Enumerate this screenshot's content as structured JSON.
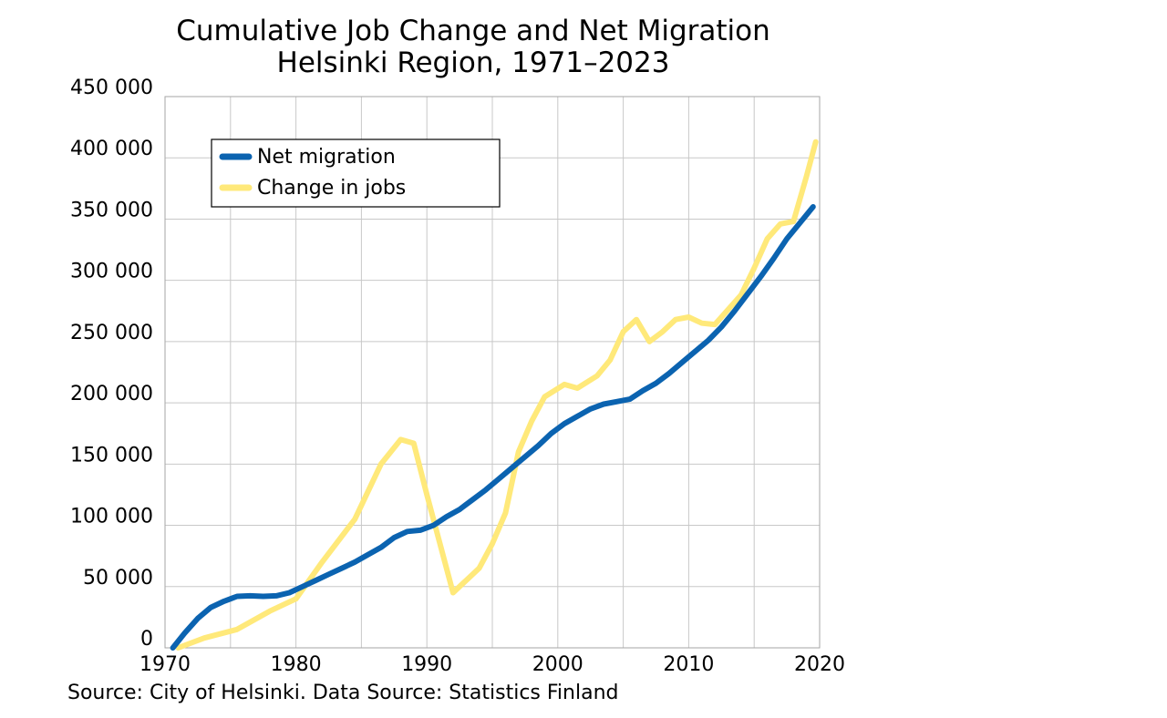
{
  "chart_data": {
    "type": "line",
    "title": [
      "Cumulative Job Change and Net Migration",
      "Helsinki Region, 1971–2023"
    ],
    "xlabel": "",
    "ylabel": "",
    "xlim": [
      1970,
      2020
    ],
    "ylim": [
      0,
      450000
    ],
    "x_ticks": [
      1970,
      1980,
      1990,
      2000,
      2010,
      2020
    ],
    "x_tick_labels": [
      "1970",
      "1980",
      "1990",
      "2000",
      "2010",
      "2020"
    ],
    "y_ticks": [
      0,
      50000,
      100000,
      150000,
      200000,
      250000,
      300000,
      350000,
      400000,
      450000
    ],
    "y_tick_labels": [
      "0",
      "50 000",
      "100 000",
      "150 000",
      "200 000",
      "250 000",
      "300 000",
      "350 000",
      "400 000",
      "450 000"
    ],
    "grid": true,
    "legend_position": "top-left",
    "series": [
      {
        "name": "Net migration",
        "color": "#0b63b0",
        "x": [
          1970.6,
          1971.5,
          1972.5,
          1973.5,
          1974.5,
          1975.5,
          1976.5,
          1977.5,
          1978.5,
          1979.5,
          1980.5,
          1981.5,
          1982.5,
          1983.5,
          1984.5,
          1985.5,
          1986.5,
          1987.5,
          1988.5,
          1989.5,
          1990.5,
          1991.5,
          1992.5,
          1993.5,
          1994.5,
          1995.5,
          1996.5,
          1997.5,
          1998.5,
          1999.5,
          2000.5,
          2001.5,
          2002.5,
          2003.5,
          2004.5,
          2005.5,
          2006.5,
          2007.5,
          2008.5,
          2009.5,
          2010.5,
          2011.5,
          2012.5,
          2013.5,
          2014.5,
          2015.5,
          2016.5,
          2017.5,
          2018.5,
          2019.5
        ],
        "values": [
          0,
          12000,
          24000,
          33000,
          38000,
          42000,
          42500,
          42000,
          42500,
          45000,
          50000,
          55000,
          60000,
          65000,
          70000,
          76000,
          82000,
          90000,
          95000,
          96000,
          100000,
          107000,
          113000,
          121000,
          129000,
          138000,
          147000,
          156000,
          165000,
          175000,
          183000,
          189000,
          195000,
          199000,
          201000,
          203000,
          210000,
          216000,
          224000,
          233000,
          242000,
          251000,
          262000,
          275000,
          289000,
          303000,
          318000,
          334000,
          347000,
          360000
        ]
      },
      {
        "name": "Change in jobs",
        "color": "#ffe97a",
        "x": [
          1971.0,
          1973.0,
          1975.5,
          1978.0,
          1980.0,
          1982.0,
          1984.5,
          1986.5,
          1988.0,
          1989.0,
          1990.0,
          1992.0,
          1994.0,
          1995.0,
          1996.0,
          1997.0,
          1998.0,
          1999.0,
          2000.5,
          2001.5,
          2003.0,
          2004.0,
          2005.0,
          2006.0,
          2007.0,
          2008.0,
          2009.0,
          2010.0,
          2011.0,
          2012.0,
          2013.0,
          2014.0,
          2015.0,
          2016.0,
          2017.0,
          2018.0,
          2019.0,
          2019.7
        ],
        "values": [
          0,
          8000,
          15000,
          30000,
          40000,
          70000,
          105000,
          150000,
          170000,
          167000,
          125000,
          45000,
          65000,
          85000,
          110000,
          160000,
          185000,
          205000,
          215000,
          212000,
          222000,
          235000,
          258000,
          268000,
          250000,
          258000,
          268000,
          270000,
          265000,
          264000,
          276000,
          288000,
          310000,
          334000,
          346000,
          348000,
          385000,
          413000
        ]
      }
    ]
  },
  "legend": {
    "items": [
      {
        "label": "Net migration",
        "color": "#0b63b0"
      },
      {
        "label": "Change in jobs",
        "color": "#ffe97a"
      }
    ]
  },
  "source_note": "Source: City of Helsinki. Data Source: Statistics Finland"
}
